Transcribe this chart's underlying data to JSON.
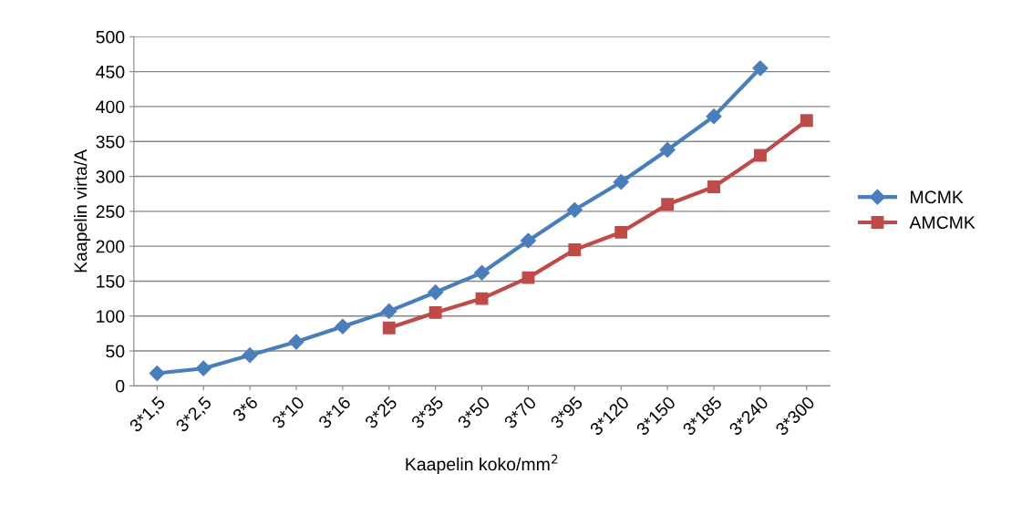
{
  "chart_data": {
    "type": "line",
    "xlabel": "Kaapelin koko/mm$^{2}$",
    "ylabel": "Kaapelin virta/A",
    "categories": [
      "3*1,5",
      "3*2,5",
      "3*6",
      "3*10",
      "3*16",
      "3*25",
      "3*35",
      "3*50",
      "3*70",
      "3*95",
      "3*120",
      "3*150",
      "3*185",
      "3*240",
      "3*300"
    ],
    "series": [
      {
        "name": "MCMK",
        "color": "#4a7ebb",
        "marker": "diamond",
        "values": [
          18,
          25,
          44,
          63,
          85,
          107,
          134,
          162,
          208,
          252,
          292,
          338,
          386,
          455,
          null
        ]
      },
      {
        "name": "AMCMK",
        "color": "#be4b48",
        "marker": "square",
        "values": [
          null,
          null,
          null,
          null,
          null,
          83,
          105,
          125,
          155,
          195,
          220,
          260,
          285,
          330,
          380
        ]
      }
    ],
    "ylim": [
      0,
      500
    ],
    "yticks": [
      0,
      50,
      100,
      150,
      200,
      250,
      300,
      350,
      400,
      450,
      500
    ],
    "grid": "y",
    "legend": "right",
    "line_style": "solid"
  }
}
